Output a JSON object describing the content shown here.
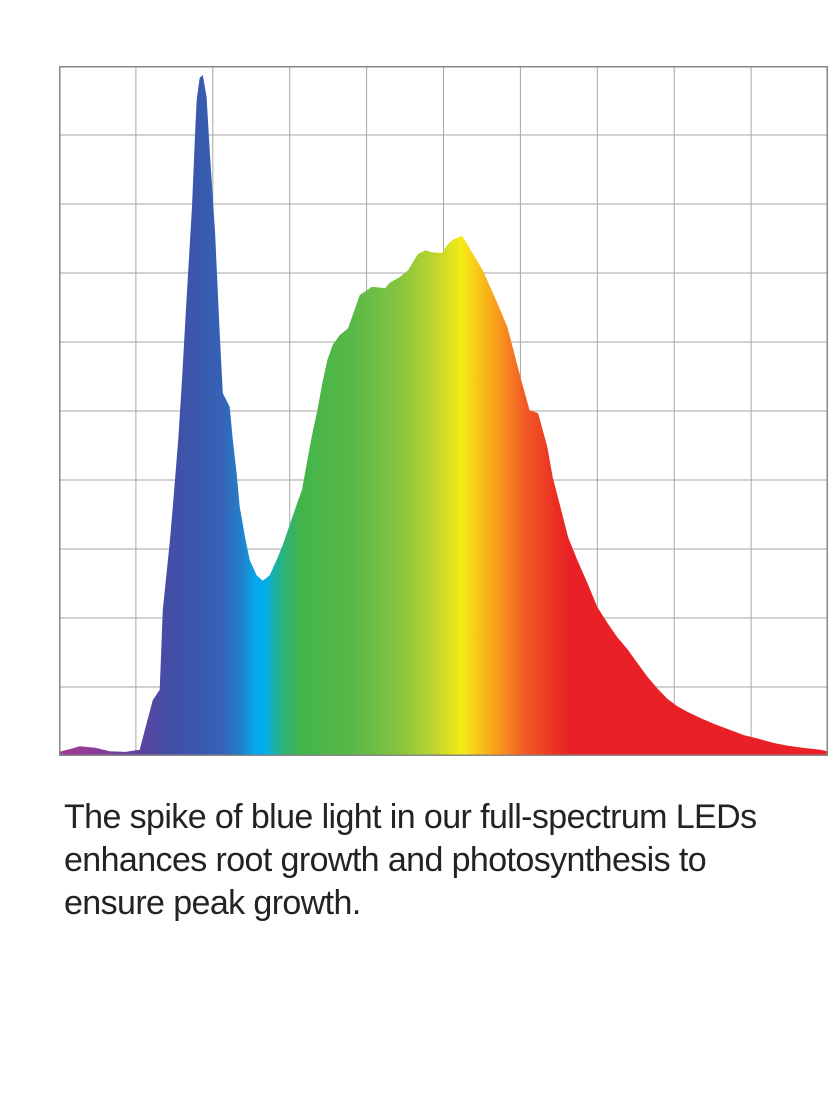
{
  "page": {
    "background_color": "#ffffff"
  },
  "chart": {
    "frame_color": "#878787",
    "grid_color": "#a6a6a6",
    "plot_background": "#ffffff"
  },
  "chart_data": {
    "type": "area",
    "title": "",
    "xlabel": "",
    "ylabel": "",
    "x_range_norm": [
      0,
      1
    ],
    "y_range_norm": [
      0,
      1
    ],
    "grid": {
      "visible": true,
      "rows": 10,
      "cols": 10
    },
    "legend": {
      "visible": false
    },
    "series": [
      {
        "name": "full-spectrum-led-spectral-power",
        "points": [
          [
            0.0,
            0.006
          ],
          [
            0.014,
            0.01
          ],
          [
            0.027,
            0.014
          ],
          [
            0.047,
            0.012
          ],
          [
            0.066,
            0.007
          ],
          [
            0.086,
            0.006
          ],
          [
            0.105,
            0.009
          ],
          [
            0.114,
            0.048
          ],
          [
            0.122,
            0.081
          ],
          [
            0.131,
            0.096
          ],
          [
            0.135,
            0.212
          ],
          [
            0.144,
            0.309
          ],
          [
            0.148,
            0.361
          ],
          [
            0.155,
            0.458
          ],
          [
            0.16,
            0.545
          ],
          [
            0.165,
            0.646
          ],
          [
            0.173,
            0.796
          ],
          [
            0.177,
            0.903
          ],
          [
            0.179,
            0.951
          ],
          [
            0.183,
            0.983
          ],
          [
            0.187,
            0.987
          ],
          [
            0.192,
            0.955
          ],
          [
            0.196,
            0.878
          ],
          [
            0.203,
            0.758
          ],
          [
            0.209,
            0.613
          ],
          [
            0.213,
            0.526
          ],
          [
            0.222,
            0.506
          ],
          [
            0.226,
            0.458
          ],
          [
            0.231,
            0.41
          ],
          [
            0.235,
            0.361
          ],
          [
            0.242,
            0.317
          ],
          [
            0.248,
            0.284
          ],
          [
            0.257,
            0.262
          ],
          [
            0.265,
            0.254
          ],
          [
            0.274,
            0.262
          ],
          [
            0.283,
            0.284
          ],
          [
            0.291,
            0.306
          ],
          [
            0.3,
            0.335
          ],
          [
            0.309,
            0.364
          ],
          [
            0.316,
            0.386
          ],
          [
            0.323,
            0.429
          ],
          [
            0.329,
            0.465
          ],
          [
            0.336,
            0.501
          ],
          [
            0.342,
            0.538
          ],
          [
            0.349,
            0.574
          ],
          [
            0.356,
            0.596
          ],
          [
            0.365,
            0.61
          ],
          [
            0.376,
            0.62
          ],
          [
            0.391,
            0.668
          ],
          [
            0.407,
            0.68
          ],
          [
            0.424,
            0.678
          ],
          [
            0.43,
            0.686
          ],
          [
            0.443,
            0.694
          ],
          [
            0.454,
            0.704
          ],
          [
            0.467,
            0.728
          ],
          [
            0.477,
            0.733
          ],
          [
            0.485,
            0.73
          ],
          [
            0.498,
            0.729
          ],
          [
            0.505,
            0.741
          ],
          [
            0.512,
            0.748
          ],
          [
            0.524,
            0.754
          ],
          [
            0.534,
            0.736
          ],
          [
            0.551,
            0.704
          ],
          [
            0.567,
            0.664
          ],
          [
            0.583,
            0.622
          ],
          [
            0.601,
            0.545
          ],
          [
            0.612,
            0.501
          ],
          [
            0.623,
            0.497
          ],
          [
            0.635,
            0.448
          ],
          [
            0.642,
            0.404
          ],
          [
            0.652,
            0.361
          ],
          [
            0.662,
            0.317
          ],
          [
            0.674,
            0.284
          ],
          [
            0.687,
            0.251
          ],
          [
            0.7,
            0.216
          ],
          [
            0.713,
            0.193
          ],
          [
            0.726,
            0.172
          ],
          [
            0.739,
            0.155
          ],
          [
            0.752,
            0.135
          ],
          [
            0.765,
            0.115
          ],
          [
            0.778,
            0.098
          ],
          [
            0.791,
            0.083
          ],
          [
            0.804,
            0.072
          ],
          [
            0.817,
            0.064
          ],
          [
            0.834,
            0.055
          ],
          [
            0.853,
            0.046
          ],
          [
            0.872,
            0.038
          ],
          [
            0.891,
            0.03
          ],
          [
            0.91,
            0.025
          ],
          [
            0.929,
            0.019
          ],
          [
            0.947,
            0.015
          ],
          [
            0.967,
            0.012
          ],
          [
            0.99,
            0.009
          ],
          [
            1.0,
            0.007
          ]
        ],
        "fill_gradient_direction": "horizontal",
        "fill_gradient_stops": [
          {
            "offset": 0.0,
            "color": "#a23a94"
          },
          {
            "offset": 0.05,
            "color": "#8a3d9a"
          },
          {
            "offset": 0.1,
            "color": "#5f439f"
          },
          {
            "offset": 0.14,
            "color": "#454da5"
          },
          {
            "offset": 0.175,
            "color": "#3a57ab"
          },
          {
            "offset": 0.212,
            "color": "#3562b6"
          },
          {
            "offset": 0.237,
            "color": "#2380cb"
          },
          {
            "offset": 0.255,
            "color": "#06a7e9"
          },
          {
            "offset": 0.266,
            "color": "#00aeef"
          },
          {
            "offset": 0.29,
            "color": "#2ab27e"
          },
          {
            "offset": 0.315,
            "color": "#42b54a"
          },
          {
            "offset": 0.38,
            "color": "#58b847"
          },
          {
            "offset": 0.445,
            "color": "#87c53f"
          },
          {
            "offset": 0.49,
            "color": "#c0d62c"
          },
          {
            "offset": 0.523,
            "color": "#f6eb16"
          },
          {
            "offset": 0.57,
            "color": "#f89c1c"
          },
          {
            "offset": 0.605,
            "color": "#f25b25"
          },
          {
            "offset": 0.645,
            "color": "#eb3024"
          },
          {
            "offset": 0.665,
            "color": "#e92127"
          },
          {
            "offset": 1.0,
            "color": "#e92127"
          }
        ]
      }
    ],
    "annotations": {
      "blue_spike": {
        "x_norm": 0.187,
        "intensity_norm": 0.987
      },
      "valley": {
        "x_norm": 0.265,
        "intensity_norm": 0.254
      },
      "broad_peak": {
        "x_norm": 0.524,
        "intensity_norm": 0.754
      }
    }
  },
  "caption": {
    "color": "#232323",
    "lines": [
      "The spike of blue light in our full-spectrum LEDs",
      "enhances root growth and photosynthesis to",
      "ensure peak growth."
    ],
    "text": "The spike of blue light in our full-spectrum LEDs enhances root growth and photosynthesis to ensure peak growth."
  }
}
